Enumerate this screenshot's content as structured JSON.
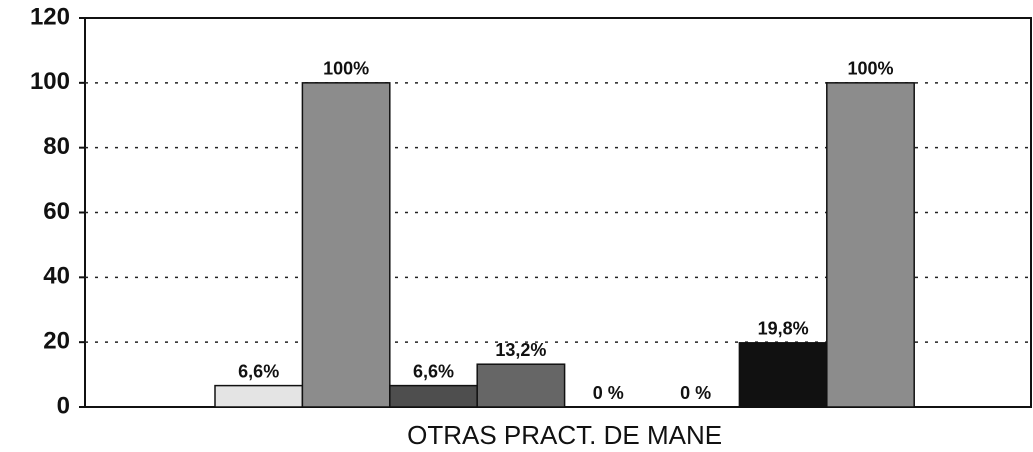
{
  "chart_data": {
    "type": "bar",
    "categories": [
      "OTRAS PRACT. DE MANE"
    ],
    "series": [
      {
        "color": "#e4e4e4",
        "values": [
          6.6
        ],
        "value_labels": [
          "6,6%"
        ]
      },
      {
        "color": "#8c8c8c",
        "values": [
          100
        ],
        "value_labels": [
          "100%"
        ]
      },
      {
        "color": "#4e4e4e",
        "values": [
          6.6
        ],
        "value_labels": [
          "6,6%"
        ]
      },
      {
        "color": "#666666",
        "values": [
          13.2
        ],
        "value_labels": [
          "13,2%"
        ]
      },
      {
        "color": "#777777",
        "values": [
          0
        ],
        "value_labels": [
          "0 %"
        ]
      },
      {
        "color": "#777777",
        "values": [
          0
        ],
        "value_labels": [
          "0 %"
        ]
      },
      {
        "color": "#111111",
        "values": [
          19.8
        ],
        "value_labels": [
          "19,8%"
        ]
      },
      {
        "color": "#8c8c8c",
        "values": [
          100
        ],
        "value_labels": [
          "100%"
        ]
      }
    ],
    "ylim": [
      0,
      120
    ],
    "yticks": [
      0,
      20,
      40,
      60,
      80,
      100,
      120
    ],
    "grid": true
  }
}
